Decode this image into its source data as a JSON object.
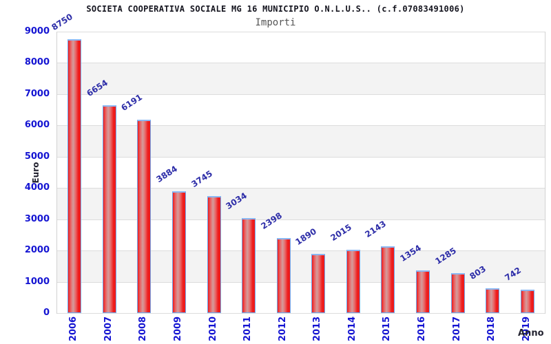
{
  "chart_data": {
    "type": "bar",
    "title": "SOCIETA COOPERATIVA SOCIALE MG 16 MUNICIPIO O.N.L.U.S.. (c.f.07083491006)",
    "subtitle": "Importi",
    "xlabel": "Anno",
    "ylabel": "Euro",
    "categories": [
      "2006",
      "2007",
      "2008",
      "2009",
      "2010",
      "2011",
      "2012",
      "2013",
      "2014",
      "2015",
      "2016",
      "2017",
      "2018",
      "2019"
    ],
    "values": [
      8750,
      6654,
      6191,
      3884,
      3745,
      3034,
      2398,
      1890,
      2015,
      2143,
      1354,
      1285,
      803,
      742
    ],
    "ylim": [
      0,
      9000
    ],
    "ytick_step": 1000,
    "yticks": [
      0,
      1000,
      2000,
      3000,
      4000,
      5000,
      6000,
      7000,
      8000,
      9000
    ],
    "legend": "none",
    "grid": "horizontal gridlines with alternating shaded bands",
    "bar_value_labels_rotated": true,
    "x_labels_rotated_90": true,
    "colors": {
      "bar_red": "#ee1c1c",
      "bar_mid_red": "#e86a6a",
      "bar_highlight": "#d49c9c",
      "bar_border": "#6fa8ef",
      "bar_top_cap": "#8ab7f2",
      "axis_tick_blue": "#1414d2",
      "value_label_blue": "#2d2da8",
      "band_gray": "#f3f3f3",
      "gridline_gray": "#dcdcdc",
      "plot_border_gray": "#d2d2d2",
      "title_color": "#14141e",
      "subtitle_color": "#555555"
    }
  }
}
